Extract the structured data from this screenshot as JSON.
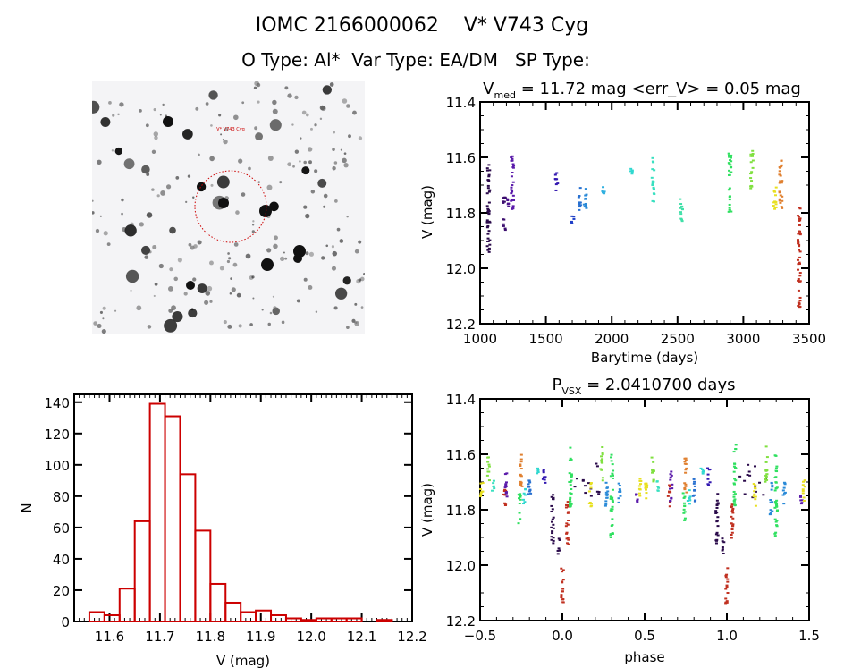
{
  "header": {
    "line1": "IOMC 2166000062    V* V743 Cyg",
    "line2": "O Type: Al*  Var Type: EA/DM   SP Type:"
  },
  "finding_chart": {
    "target_label": "V* V743 Cyg",
    "target_marker_color": "#cc0000"
  },
  "colors": {
    "histogram": "#cc0000",
    "axes": "#000000"
  },
  "chart_data": [
    {
      "type": "scatter",
      "name": "light-curve",
      "title": "V_med = 11.72 mag <err_V> = 0.05 mag",
      "title_main": "V",
      "title_sub": "med",
      "title_rest": " = 11.72 mag <err_V> = 0.05 mag",
      "xlabel": "Barytime (days)",
      "ylabel": "V (mag)",
      "xlim": [
        1000,
        3500
      ],
      "ylim": [
        12.2,
        11.4
      ],
      "xticks": [
        1000,
        1500,
        2000,
        2500,
        3000,
        3500
      ],
      "yticks": [
        11.4,
        11.6,
        11.8,
        12.0,
        12.2
      ],
      "ytick_labels": [
        "11.4",
        "11.6",
        "11.8",
        "12.0",
        "12.2"
      ],
      "clusters": [
        {
          "x": 1065,
          "color": "#2a0a4a",
          "vmin": 11.62,
          "vmax": 11.96
        },
        {
          "x": 1185,
          "color": "#3b0d6e",
          "vmin": 11.74,
          "vmax": 11.87
        },
        {
          "x": 1215,
          "color": "#4b128c",
          "vmin": 11.75,
          "vmax": 11.79
        },
        {
          "x": 1245,
          "color": "#5a1aaa",
          "vmin": 11.57,
          "vmax": 11.79
        },
        {
          "x": 1580,
          "color": "#3318b0",
          "vmin": 11.65,
          "vmax": 11.72
        },
        {
          "x": 1705,
          "color": "#2040c8",
          "vmin": 11.81,
          "vmax": 11.84
        },
        {
          "x": 1760,
          "color": "#2870d0",
          "vmin": 11.7,
          "vmax": 11.79
        },
        {
          "x": 1800,
          "color": "#2a8ad8",
          "vmin": 11.7,
          "vmax": 11.8
        },
        {
          "x": 1940,
          "color": "#30b0e0",
          "vmin": 11.7,
          "vmax": 11.73
        },
        {
          "x": 2150,
          "color": "#30d8d0",
          "vmin": 11.64,
          "vmax": 11.66
        },
        {
          "x": 2315,
          "color": "#38e0c0",
          "vmin": 11.6,
          "vmax": 11.76
        },
        {
          "x": 2530,
          "color": "#40e0a8",
          "vmin": 11.75,
          "vmax": 11.85
        },
        {
          "x": 2900,
          "color": "#30e060",
          "vmin": 11.56,
          "vmax": 11.8
        },
        {
          "x": 3065,
          "color": "#80e040",
          "vmin": 11.57,
          "vmax": 11.72
        },
        {
          "x": 3240,
          "color": "#e8e020",
          "vmin": 11.69,
          "vmax": 11.8
        },
        {
          "x": 3285,
          "color": "#e08030",
          "vmin": 11.6,
          "vmax": 11.79
        },
        {
          "x": 3425,
          "color": "#c03020",
          "vmin": 11.77,
          "vmax": 12.15
        }
      ]
    },
    {
      "type": "bar",
      "name": "histogram",
      "title": "",
      "xlabel": "V (mag)",
      "ylabel": "N",
      "xlim": [
        11.53,
        12.2
      ],
      "ylim": [
        0,
        145
      ],
      "xticks": [
        11.6,
        11.7,
        11.8,
        11.9,
        12.0,
        12.1,
        12.2
      ],
      "xtick_labels": [
        "11.6",
        "11.7",
        "11.8",
        "11.9",
        "12.0",
        "12.1",
        "12.2"
      ],
      "yticks": [
        0,
        20,
        40,
        60,
        80,
        100,
        120,
        140
      ],
      "bin_start": 11.56,
      "bin_width": 0.03,
      "values": [
        6,
        4,
        21,
        64,
        139,
        131,
        94,
        58,
        24,
        12,
        6,
        7,
        4,
        2,
        1,
        2,
        2,
        2,
        0,
        1
      ]
    },
    {
      "type": "scatter",
      "name": "phased-light-curve",
      "title_main": "P",
      "title_sub": "VSX",
      "title_rest": " = 2.0410700 days",
      "title": "P_VSX = 2.0410700 days",
      "xlabel": "phase",
      "ylabel": "V (mag)",
      "xlim": [
        -0.5,
        1.5
      ],
      "ylim": [
        12.2,
        11.4
      ],
      "xticks": [
        -0.5,
        0.0,
        0.5,
        1.0,
        1.5
      ],
      "xtick_labels": [
        "−0.5",
        "0.0",
        "0.5",
        "1.0",
        "1.5"
      ],
      "yticks": [
        11.4,
        11.6,
        11.8,
        12.0,
        12.2
      ],
      "ytick_labels": [
        "11.4",
        "11.6",
        "11.8",
        "12.0",
        "12.2"
      ],
      "period_days": 2.04107,
      "clusters": [
        {
          "phase": -0.49,
          "color": "#e8e020",
          "vmin": 11.7,
          "vmax": 11.77
        },
        {
          "phase": -0.45,
          "color": "#80e040",
          "vmin": 11.61,
          "vmax": 11.7
        },
        {
          "phase": -0.42,
          "color": "#38e0c0",
          "vmin": 11.69,
          "vmax": 11.74
        },
        {
          "phase": -0.35,
          "color": "#c03020",
          "vmin": 11.71,
          "vmax": 11.79
        },
        {
          "phase": -0.34,
          "color": "#5a1aaa",
          "vmin": 11.66,
          "vmax": 11.77
        },
        {
          "phase": -0.26,
          "color": "#30e060",
          "vmin": 11.74,
          "vmax": 11.85
        },
        {
          "phase": -0.25,
          "color": "#e08030",
          "vmin": 11.6,
          "vmax": 11.74
        },
        {
          "phase": -0.23,
          "color": "#30d8d0",
          "vmin": 11.72,
          "vmax": 11.78
        },
        {
          "phase": -0.2,
          "color": "#2870d0",
          "vmin": 11.69,
          "vmax": 11.79
        },
        {
          "phase": -0.15,
          "color": "#30d8d0",
          "vmin": 11.65,
          "vmax": 11.67
        },
        {
          "phase": -0.11,
          "color": "#3318b0",
          "vmin": 11.65,
          "vmax": 11.72
        },
        {
          "phase": -0.06,
          "color": "#2a0a4a",
          "vmin": 11.74,
          "vmax": 11.93
        },
        {
          "phase": -0.02,
          "color": "#2a0a4a",
          "vmin": 11.9,
          "vmax": 11.96
        },
        {
          "phase": 0.0,
          "color": "#c03020",
          "vmin": 12.0,
          "vmax": 12.14
        },
        {
          "phase": 0.03,
          "color": "#c03020",
          "vmin": 11.77,
          "vmax": 11.93
        },
        {
          "phase": 0.05,
          "color": "#30e060",
          "vmin": 11.56,
          "vmax": 11.79
        },
        {
          "phase": 0.15,
          "color": "#2a0a4a",
          "vmin": 11.63,
          "vmax": 11.76
        },
        {
          "phase": 0.17,
          "color": "#e8e020",
          "vmin": 11.7,
          "vmax": 11.79
        },
        {
          "phase": 0.24,
          "color": "#80e040",
          "vmin": 11.57,
          "vmax": 11.7
        },
        {
          "phase": 0.27,
          "color": "#2a8ad8",
          "vmin": 11.7,
          "vmax": 11.82
        },
        {
          "phase": 0.3,
          "color": "#30e060",
          "vmin": 11.6,
          "vmax": 11.9
        },
        {
          "phase": 0.35,
          "color": "#2a8ad8",
          "vmin": 11.7,
          "vmax": 11.78
        },
        {
          "phase": 0.45,
          "color": "#5a1aaa",
          "vmin": 11.74,
          "vmax": 11.78
        },
        {
          "phase": 0.47,
          "color": "#e8e020",
          "vmin": 11.68,
          "vmax": 11.77
        },
        {
          "phase": 0.51,
          "color": "#e8e020",
          "vmin": 11.7,
          "vmax": 11.73
        }
      ]
    }
  ]
}
